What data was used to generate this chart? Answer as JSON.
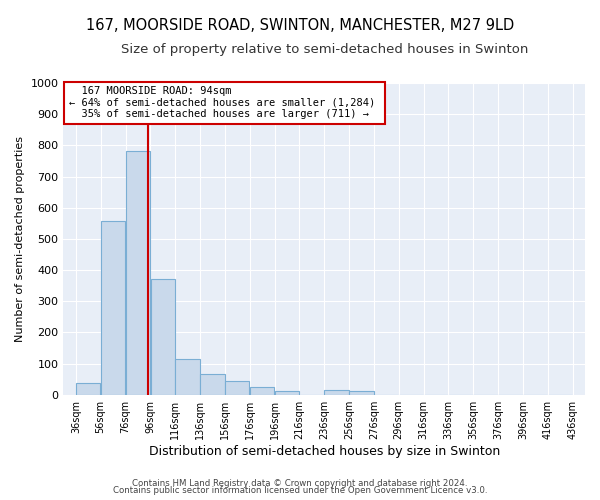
{
  "title1": "167, MOORSIDE ROAD, SWINTON, MANCHESTER, M27 9LD",
  "title2": "Size of property relative to semi-detached houses in Swinton",
  "xlabel": "Distribution of semi-detached houses by size in Swinton",
  "ylabel": "Number of semi-detached properties",
  "bar_color": "#c9d9eb",
  "bar_edge_color": "#7aaed4",
  "property_line_color": "#cc0000",
  "property_value": 94,
  "annotation_line1": "167 MOORSIDE ROAD: 94sqm",
  "annotation_line2": "← 64% of semi-detached houses are smaller (1,284)",
  "annotation_line3": "35% of semi-detached houses are larger (711) →",
  "footer_line1": "Contains HM Land Registry data © Crown copyright and database right 2024.",
  "footer_line2": "Contains public sector information licensed under the Open Government Licence v3.0.",
  "bins": [
    36,
    56,
    76,
    96,
    116,
    136,
    156,
    176,
    196,
    216,
    236,
    256,
    276,
    296,
    316,
    336,
    356,
    376,
    396,
    416,
    436
  ],
  "counts": [
    38,
    557,
    783,
    370,
    115,
    65,
    44,
    24,
    12,
    0,
    14,
    12,
    0,
    0,
    0,
    0,
    0,
    0,
    0,
    0
  ],
  "ylim": [
    0,
    1000
  ],
  "yticks": [
    0,
    100,
    200,
    300,
    400,
    500,
    600,
    700,
    800,
    900,
    1000
  ],
  "background_color": "#ffffff",
  "plot_bg_color": "#e8eef7",
  "grid_color": "#ffffff",
  "title1_fontsize": 10.5,
  "title2_fontsize": 9.5,
  "annotation_box_color": "#ffffff",
  "annotation_box_edge": "#cc0000"
}
